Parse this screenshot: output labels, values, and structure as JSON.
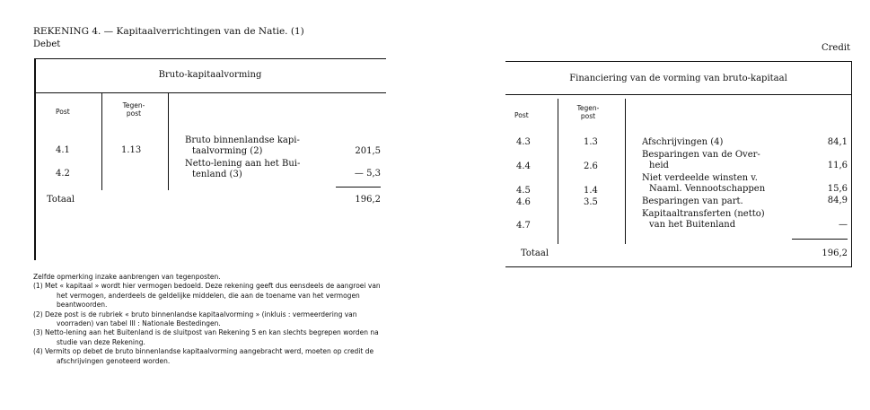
{
  "title": "REKENING 4. — Kapitaalverrichtingen van de Natie. (1)",
  "debet_label": "Debet",
  "credit_label": "Credit",
  "debet_table": {
    "heading": "Bruto-kapitaalvorming",
    "col_post": "Post",
    "col_tegenpost": "Tegen-post",
    "rows": [
      {
        "post": "4.1",
        "tegenpost": "1.13",
        "desc_1": "Bruto binnenlandse kapi-",
        "desc_2": "taalvorming (2)",
        "value": "201,5"
      },
      {
        "post": "4.2",
        "tegenpost": "",
        "desc_1": "Netto-lening aan het Bui-",
        "desc_2": "tenland (3)",
        "value": "— 5,3"
      }
    ],
    "total_label": "Totaal",
    "total_value": "196,2"
  },
  "credit_table": {
    "heading": "Financiering van de vorming van bruto-kapitaal",
    "col_post": "Post",
    "col_tegenpost": "Tegen-post",
    "rows": [
      {
        "post": "4.3",
        "tegenpost": "1.3",
        "desc_1": "Afschrijvingen (4)",
        "desc_2": "",
        "value": "84,1"
      },
      {
        "post": "4.4",
        "tegenpost": "2.6",
        "desc_1": "Besparingen van de Over-",
        "desc_2": "heid",
        "value": "11,6"
      },
      {
        "post": "4.5",
        "tegenpost": "1.4",
        "desc_1": "Niet verdeelde winsten v.",
        "desc_2": "Naaml. Vennootschappen",
        "value": "15,6"
      },
      {
        "post": "4.6",
        "tegenpost": "3.5",
        "desc_1": "Besparingen van part.",
        "desc_2": "",
        "value": "84,9"
      },
      {
        "post": "4.7",
        "tegenpost": "",
        "desc_1": "Kapitaaltransferten (netto)",
        "desc_2": "van het Buitenland",
        "value": "—"
      }
    ],
    "total_label": "Totaal",
    "total_value": "196,2"
  },
  "notes": {
    "intro": "Zelfde opmerking inzake aanbrengen van tegenposten.",
    "items": [
      "(1) Met « kapitaal » wordt hier vermogen bedoeld. Deze rekening geeft dus eensdeels de aangroei van het vermogen, anderdeels de geldelijke middelen, die aan de toename van het vermogen beantwoorden.",
      "(2) Deze post is de rubriek « bruto binnenlandse kapitaalvorming » (inkluis : vermeerdering van voorraden) van tabel III : Nationale Bestedingen.",
      "(3) Netto-lening aan het Buitenland is de sluitpost van Rekening 5 en kan slechts begrepen worden na studie van deze Rekening.",
      "(4) Vermits op debet de bruto binnenlandse kapitaalvorming aangebracht werd, moeten op credit de afschrijvingen genoteerd worden."
    ]
  }
}
